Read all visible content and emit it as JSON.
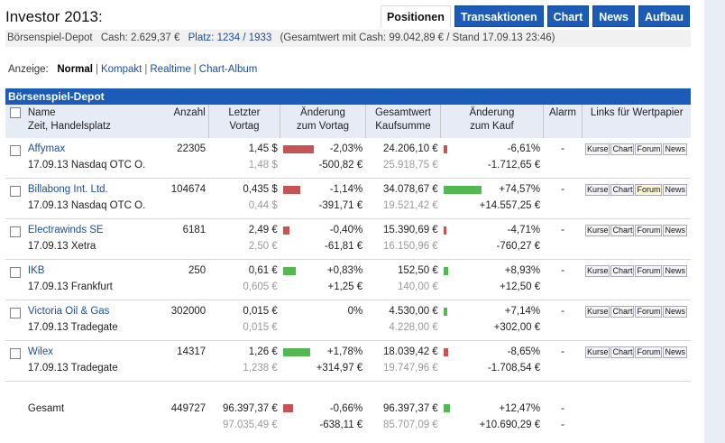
{
  "header": {
    "title": "Investor 2013:",
    "tabs": [
      {
        "label": "Positionen",
        "active": true
      },
      {
        "label": "Transaktionen",
        "active": false
      },
      {
        "label": "Chart",
        "active": false
      },
      {
        "label": "News",
        "active": false
      },
      {
        "label": "Aufbau",
        "active": false
      }
    ]
  },
  "subbar": {
    "depot": "Börsenspiel-Depot",
    "cash": "Cash: 2.629,37 €",
    "platz_label": "Platz:",
    "platz_value": "1234 / 1933",
    "gesamt": "(Gesamtwert mit Cash: 99.042,89 € / Stand 17.09.13 23:46)"
  },
  "views": {
    "label": "Anzeige:",
    "items": [
      "Normal",
      "Kompakt",
      "Realtime",
      "Chart-Album"
    ]
  },
  "panel": {
    "title": "Börsenspiel-Depot",
    "columns": {
      "name1": "Name",
      "name2": "Zeit, Handelsplatz",
      "anzahl": "Anzahl",
      "letzter1": "Letzter",
      "letzter2": "Vortag",
      "aend1": "Änderung",
      "aend2": "zum Vortag",
      "gesamt1": "Gesamtwert",
      "gesamt2": "Kaufsumme",
      "kauf1": "Änderung",
      "kauf2": "zum Kauf",
      "alarm": "Alarm",
      "links": "Links für Wertpapier"
    },
    "link_labels": [
      "Kurse",
      "Chart",
      "Forum",
      "News"
    ],
    "rows": [
      {
        "name": "Affymax",
        "date": "17.09.13 Nasdaq OTC O.",
        "anzahl": "22305",
        "kurs": "1,45 $",
        "vortag": "1,48 $",
        "aend_pct": "-2,03%",
        "aend_abs": "-500,82 €",
        "bar1": -2.03,
        "gesamt": "24.206,10 €",
        "kauf": "25.918,75 €",
        "kauf_pct": "-6,61%",
        "kauf_abs": "-1.712,65 €",
        "bar2": -6.61,
        "alarm": "-"
      },
      {
        "name": "Billabong Int. Ltd.",
        "date": "17.09.13 Nasdaq OTC O.",
        "anzahl": "104674",
        "kurs": "0,435 $",
        "vortag": "0,44 $",
        "aend_pct": "-1,14%",
        "aend_abs": "-391,71 €",
        "bar1": -1.14,
        "gesamt": "34.078,67 €",
        "kauf": "19.521,42 €",
        "kauf_pct": "+74,57%",
        "kauf_abs": "+14.557,25 €",
        "bar2": 74.57,
        "alarm": "-",
        "forum_hl": true
      },
      {
        "name": "Electrawinds SE",
        "date": "17.09.13 Xetra",
        "anzahl": "6181",
        "kurs": "2,49 €",
        "vortag": "2,50 €",
        "aend_pct": "-0,40%",
        "aend_abs": "-61,81 €",
        "bar1": -0.4,
        "gesamt": "15.390,69 €",
        "kauf": "16.150,96 €",
        "kauf_pct": "-4,71%",
        "kauf_abs": "-760,27 €",
        "bar2": -4.71,
        "alarm": "-"
      },
      {
        "name": "IKB",
        "date": "17.09.13 Frankfurt",
        "anzahl": "250",
        "kurs": "0,61 €",
        "vortag": "0,605 €",
        "aend_pct": "+0,83%",
        "aend_abs": "+1,25 €",
        "bar1": 0.83,
        "gesamt": "152,50 €",
        "kauf": "140,00 €",
        "kauf_pct": "+8,93%",
        "kauf_abs": "+12,50 €",
        "bar2": 8.93,
        "alarm": "-"
      },
      {
        "name": "Victoria Oil & Gas",
        "date": "17.09.13 Tradegate",
        "anzahl": "302000",
        "kurs": "0,015 €",
        "vortag": "0,015 €",
        "aend_pct": "0%",
        "aend_abs": "",
        "bar1": 0,
        "gesamt": "4.530,00 €",
        "kauf": "4.228,00 €",
        "kauf_pct": "+7,14%",
        "kauf_abs": "+302,00 €",
        "bar2": 7.14,
        "alarm": "-"
      },
      {
        "name": "Wilex",
        "date": "17.09.13 Tradegate",
        "anzahl": "14317",
        "kurs": "1,26 €",
        "vortag": "1,238 €",
        "aend_pct": "+1,78%",
        "aend_abs": "+314,97 €",
        "bar1": 1.78,
        "gesamt": "18.039,42 €",
        "kauf": "19.747,96 €",
        "kauf_pct": "-8,65%",
        "kauf_abs": "-1.708,54 €",
        "bar2": -8.65,
        "alarm": "-"
      }
    ],
    "total": {
      "label": "Gesamt",
      "anzahl": "449727",
      "kurs": "96.397,37 €",
      "vortag": "97.035,49 €",
      "aend_pct": "-0,66%",
      "aend_abs": "-638,11 €",
      "bar1": -0.66,
      "gesamt": "96.397,37 €",
      "kauf": "85.707,09 €",
      "kauf_pct": "+12,47%",
      "kauf_abs": "+10.690,29 €",
      "bar2": 12.47,
      "alarm1": "-",
      "alarm2": "-"
    },
    "colors": {
      "neg": "#c55454",
      "pos": "#53b852",
      "tab": "#1b5cb8"
    }
  }
}
